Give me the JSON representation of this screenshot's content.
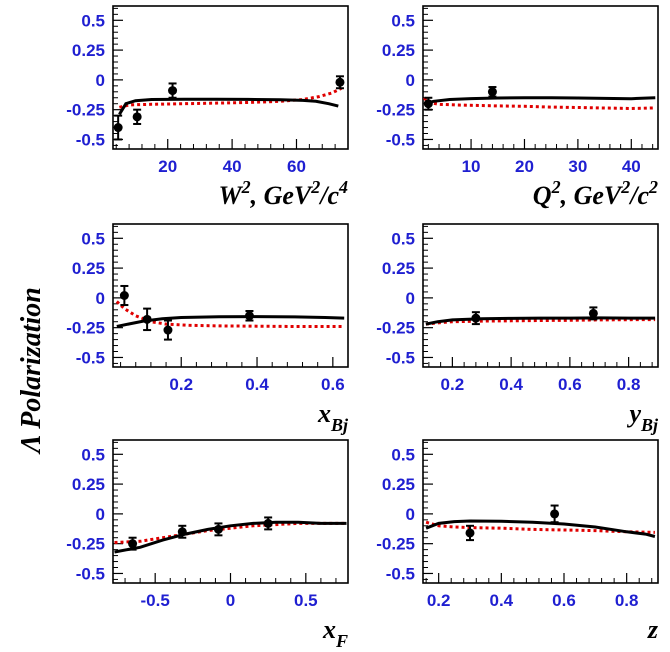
{
  "figure": {
    "y_axis_label": "Λ Polarization",
    "colors": {
      "frame": "#000000",
      "tick_labels": "#1f1fd1",
      "data_points": "#000000",
      "model_solid": "#000000",
      "model_dashed": "#e00000"
    }
  },
  "chart_data": [
    {
      "type": "scatter",
      "panel": "W2",
      "xlabel": {
        "main": "W",
        "sup1": "2",
        "mid": ", GeV",
        "sup2": "2",
        "tail": "/c",
        "sup3": "4",
        "sub": ""
      },
      "xlim": [
        3,
        76
      ],
      "ylim": [
        -0.58,
        0.62
      ],
      "xticks": [
        20,
        40,
        60
      ],
      "xtick_labels": [
        "20",
        "40",
        "60"
      ],
      "yticks": [
        0.5,
        0.25,
        0,
        -0.25,
        -0.5
      ],
      "ytick_labels": [
        "0.5",
        "0.25",
        "0",
        "-0.25",
        "-0.5"
      ],
      "points": [
        {
          "x": 4.6,
          "y": -0.4,
          "err": 0.1
        },
        {
          "x": 10.5,
          "y": -0.31,
          "err": 0.06
        },
        {
          "x": 21.5,
          "y": -0.09,
          "err": 0.06
        },
        {
          "x": 73.5,
          "y": -0.02,
          "err": 0.05
        }
      ],
      "solid_curve": [
        [
          5,
          -0.29
        ],
        [
          7,
          -0.2
        ],
        [
          10,
          -0.175
        ],
        [
          15,
          -0.165
        ],
        [
          25,
          -0.162
        ],
        [
          35,
          -0.162
        ],
        [
          45,
          -0.164
        ],
        [
          55,
          -0.167
        ],
        [
          62,
          -0.172
        ],
        [
          66,
          -0.18
        ],
        [
          70,
          -0.2
        ],
        [
          73,
          -0.22
        ]
      ],
      "dashed_curve": [
        [
          5,
          -0.23
        ],
        [
          8,
          -0.21
        ],
        [
          15,
          -0.205
        ],
        [
          25,
          -0.2
        ],
        [
          35,
          -0.195
        ],
        [
          45,
          -0.19
        ],
        [
          55,
          -0.18
        ],
        [
          62,
          -0.165
        ],
        [
          67,
          -0.14
        ],
        [
          71,
          -0.11
        ],
        [
          74,
          -0.07
        ]
      ]
    },
    {
      "type": "scatter",
      "panel": "Q2",
      "xlabel": {
        "main": "Q",
        "sup1": "2",
        "mid": ", GeV",
        "sup2": "2",
        "tail": "/c",
        "sup3": "2",
        "sub": ""
      },
      "xlim": [
        1,
        45
      ],
      "ylim": [
        -0.58,
        0.62
      ],
      "xticks": [
        10,
        20,
        30,
        40
      ],
      "xtick_labels": [
        "10",
        "20",
        "30",
        "40"
      ],
      "yticks": [
        0.5,
        0.25,
        0,
        -0.25,
        -0.5
      ],
      "ytick_labels": [
        "0.5",
        "0.25",
        "0",
        "-0.25",
        "-0.5"
      ],
      "points": [
        {
          "x": 2,
          "y": -0.2,
          "err": 0.05
        },
        {
          "x": 14,
          "y": -0.1,
          "err": 0.04
        }
      ],
      "solid_curve": [
        [
          1.2,
          -0.2
        ],
        [
          3,
          -0.18
        ],
        [
          6,
          -0.165
        ],
        [
          10,
          -0.157
        ],
        [
          15,
          -0.152
        ],
        [
          20,
          -0.15
        ],
        [
          25,
          -0.15
        ],
        [
          30,
          -0.152
        ],
        [
          35,
          -0.155
        ],
        [
          40,
          -0.158
        ],
        [
          44.5,
          -0.15
        ]
      ],
      "dashed_curve": [
        [
          1.2,
          -0.15
        ],
        [
          2,
          -0.19
        ],
        [
          4,
          -0.205
        ],
        [
          8,
          -0.212
        ],
        [
          15,
          -0.218
        ],
        [
          20,
          -0.222
        ],
        [
          25,
          -0.228
        ],
        [
          30,
          -0.232
        ],
        [
          35,
          -0.236
        ],
        [
          40,
          -0.24
        ],
        [
          44.5,
          -0.235
        ]
      ]
    },
    {
      "type": "scatter",
      "panel": "xBj",
      "xlabel": {
        "main": "x",
        "sup1": "",
        "mid": "",
        "sup2": "",
        "tail": "",
        "sup3": "",
        "sub": "Bj"
      },
      "xlim": [
        0.02,
        0.64
      ],
      "ylim": [
        -0.58,
        0.62
      ],
      "xticks": [
        0.2,
        0.4,
        0.6
      ],
      "xtick_labels": [
        "0.2",
        "0.4",
        "0.6"
      ],
      "yticks": [
        0.5,
        0.25,
        0,
        -0.25,
        -0.5
      ],
      "ytick_labels": [
        "0.5",
        "0.25",
        "0",
        "-0.25",
        "-0.5"
      ],
      "points": [
        {
          "x": 0.05,
          "y": 0.02,
          "err": 0.08
        },
        {
          "x": 0.11,
          "y": -0.18,
          "err": 0.09
        },
        {
          "x": 0.165,
          "y": -0.27,
          "err": 0.08
        },
        {
          "x": 0.38,
          "y": -0.15,
          "err": 0.04
        }
      ],
      "solid_curve": [
        [
          0.03,
          -0.24
        ],
        [
          0.06,
          -0.22
        ],
        [
          0.1,
          -0.195
        ],
        [
          0.15,
          -0.175
        ],
        [
          0.2,
          -0.165
        ],
        [
          0.3,
          -0.158
        ],
        [
          0.4,
          -0.157
        ],
        [
          0.5,
          -0.16
        ],
        [
          0.58,
          -0.165
        ],
        [
          0.63,
          -0.17
        ]
      ],
      "dashed_curve": [
        [
          0.03,
          -0.03
        ],
        [
          0.05,
          -0.09
        ],
        [
          0.08,
          -0.15
        ],
        [
          0.12,
          -0.2
        ],
        [
          0.16,
          -0.22
        ],
        [
          0.22,
          -0.23
        ],
        [
          0.3,
          -0.235
        ],
        [
          0.4,
          -0.238
        ],
        [
          0.5,
          -0.24
        ],
        [
          0.63,
          -0.24
        ]
      ]
    },
    {
      "type": "scatter",
      "panel": "yBj",
      "xlabel": {
        "main": "y",
        "sup1": "",
        "mid": "",
        "sup2": "",
        "tail": "",
        "sup3": "",
        "sub": "Bj"
      },
      "xlim": [
        0.1,
        0.9
      ],
      "ylim": [
        -0.58,
        0.62
      ],
      "xticks": [
        0.2,
        0.4,
        0.6,
        0.8
      ],
      "xtick_labels": [
        "0.2",
        "0.4",
        "0.6",
        "0.8"
      ],
      "yticks": [
        0.5,
        0.25,
        0,
        -0.25,
        -0.5
      ],
      "ytick_labels": [
        "0.5",
        "0.25",
        "0",
        "-0.25",
        "-0.5"
      ],
      "points": [
        {
          "x": 0.28,
          "y": -0.17,
          "err": 0.05
        },
        {
          "x": 0.68,
          "y": -0.13,
          "err": 0.05
        }
      ],
      "solid_curve": [
        [
          0.11,
          -0.22
        ],
        [
          0.15,
          -0.2
        ],
        [
          0.2,
          -0.185
        ],
        [
          0.3,
          -0.175
        ],
        [
          0.4,
          -0.172
        ],
        [
          0.5,
          -0.17
        ],
        [
          0.6,
          -0.17
        ],
        [
          0.7,
          -0.168
        ],
        [
          0.8,
          -0.17
        ],
        [
          0.89,
          -0.17
        ]
      ],
      "dashed_curve": [
        [
          0.11,
          -0.22
        ],
        [
          0.15,
          -0.21
        ],
        [
          0.2,
          -0.2
        ],
        [
          0.3,
          -0.195
        ],
        [
          0.4,
          -0.192
        ],
        [
          0.5,
          -0.19
        ],
        [
          0.6,
          -0.188
        ],
        [
          0.7,
          -0.185
        ],
        [
          0.8,
          -0.183
        ],
        [
          0.89,
          -0.182
        ]
      ]
    },
    {
      "type": "scatter",
      "panel": "xF",
      "xlabel": {
        "main": "x",
        "sup1": "",
        "mid": "",
        "sup2": "",
        "tail": "",
        "sup3": "",
        "sub": "F"
      },
      "xlim": [
        -0.78,
        0.78
      ],
      "ylim": [
        -0.58,
        0.62
      ],
      "xticks": [
        -0.5,
        0,
        0.5
      ],
      "xtick_labels": [
        "-0.5",
        "0",
        "0.5"
      ],
      "yticks": [
        0.5,
        0.25,
        0,
        -0.25,
        -0.5
      ],
      "ytick_labels": [
        "0.5",
        "0.25",
        "0",
        "-0.25",
        "-0.5"
      ],
      "points": [
        {
          "x": -0.65,
          "y": -0.25,
          "err": 0.05
        },
        {
          "x": -0.32,
          "y": -0.15,
          "err": 0.05
        },
        {
          "x": -0.08,
          "y": -0.13,
          "err": 0.05
        },
        {
          "x": 0.25,
          "y": -0.08,
          "err": 0.05
        }
      ],
      "solid_curve": [
        [
          -0.77,
          -0.32
        ],
        [
          -0.6,
          -0.28
        ],
        [
          -0.45,
          -0.22
        ],
        [
          -0.3,
          -0.17
        ],
        [
          -0.15,
          -0.13
        ],
        [
          0,
          -0.1
        ],
        [
          0.15,
          -0.08
        ],
        [
          0.3,
          -0.07
        ],
        [
          0.45,
          -0.07
        ],
        [
          0.6,
          -0.08
        ],
        [
          0.77,
          -0.08
        ]
      ],
      "dashed_curve": [
        [
          -0.77,
          -0.24
        ],
        [
          -0.6,
          -0.23
        ],
        [
          -0.45,
          -0.2
        ],
        [
          -0.3,
          -0.17
        ],
        [
          -0.15,
          -0.14
        ],
        [
          0,
          -0.12
        ],
        [
          0.15,
          -0.1
        ],
        [
          0.3,
          -0.09
        ],
        [
          0.45,
          -0.08
        ],
        [
          0.6,
          -0.08
        ],
        [
          0.77,
          -0.08
        ]
      ]
    },
    {
      "type": "scatter",
      "panel": "z",
      "xlabel": {
        "main": "z",
        "sup1": "",
        "mid": "",
        "sup2": "",
        "tail": "",
        "sup3": "",
        "sub": ""
      },
      "xlim": [
        0.15,
        0.9
      ],
      "ylim": [
        -0.58,
        0.62
      ],
      "xticks": [
        0.2,
        0.4,
        0.6,
        0.8
      ],
      "xtick_labels": [
        "0.2",
        "0.4",
        "0.6",
        "0.8"
      ],
      "yticks": [
        0.5,
        0.25,
        0,
        -0.25,
        -0.5
      ],
      "ytick_labels": [
        "0.5",
        "0.25",
        "0",
        "-0.25",
        "-0.5"
      ],
      "points": [
        {
          "x": 0.3,
          "y": -0.16,
          "err": 0.06
        },
        {
          "x": 0.57,
          "y": 0.0,
          "err": 0.07
        }
      ],
      "solid_curve": [
        [
          0.16,
          -0.12
        ],
        [
          0.2,
          -0.08
        ],
        [
          0.25,
          -0.065
        ],
        [
          0.3,
          -0.06
        ],
        [
          0.4,
          -0.062
        ],
        [
          0.5,
          -0.07
        ],
        [
          0.6,
          -0.085
        ],
        [
          0.7,
          -0.11
        ],
        [
          0.8,
          -0.15
        ],
        [
          0.86,
          -0.17
        ],
        [
          0.89,
          -0.19
        ]
      ],
      "dashed_curve": [
        [
          0.16,
          -0.07
        ],
        [
          0.2,
          -0.1
        ],
        [
          0.25,
          -0.11
        ],
        [
          0.3,
          -0.115
        ],
        [
          0.4,
          -0.12
        ],
        [
          0.5,
          -0.13
        ],
        [
          0.6,
          -0.135
        ],
        [
          0.7,
          -0.14
        ],
        [
          0.8,
          -0.15
        ],
        [
          0.89,
          -0.155
        ]
      ]
    }
  ]
}
